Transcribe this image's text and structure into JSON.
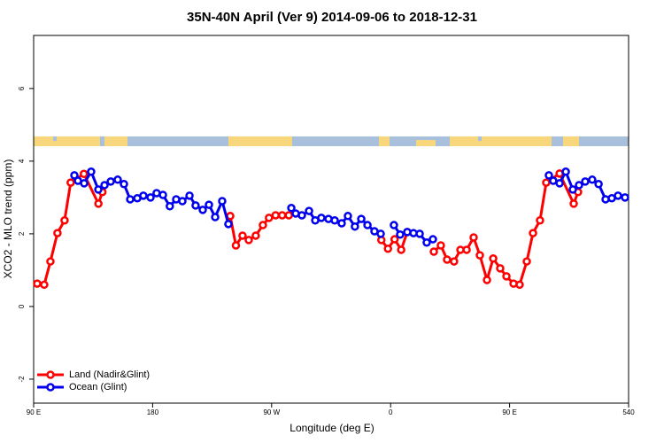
{
  "chart_data": {
    "type": "line",
    "title": "35N-40N April (Ver 9)   2014-09-06 to 2018-12-31",
    "xlabel": "Longitude (deg E)",
    "ylabel": "XCO2 - MLO trend (ppm)",
    "xlim": [
      90,
      540
    ],
    "ylim": [
      -2.66,
      7.46
    ],
    "xticks": [
      {
        "value": 90,
        "label": "90 E"
      },
      180,
      {
        "value": 270,
        "label": "90 W"
      },
      {
        "value": 360,
        "label": "0"
      },
      {
        "value": 450,
        "label": "90 E"
      },
      540
    ],
    "yticks": [
      -2,
      0,
      2,
      4,
      6
    ],
    "legend": "bottom-left",
    "series": [
      {
        "name": "Land (Nadir&Glint)",
        "color": "#ff0000",
        "x": [
          92.7,
          98,
          102.7,
          108,
          113.4,
          118,
          128,
          139,
          142,
          null,
          238.7,
          243,
          248,
          252.7,
          258,
          263.4,
          268,
          273,
          278,
          283,
          null,
          353,
          358,
          363,
          368,
          372.6,
          null,
          392.7,
          398,
          402.7,
          408,
          412.8,
          417.5,
          422.8,
          427.5,
          432.9,
          437.6,
          442.9,
          447.6,
          453,
          457.6,
          463,
          467.7,
          473,
          477.7,
          487.8,
          498.5,
          501.8
        ],
        "values": [
          0.63,
          0.6,
          1.24,
          2.02,
          2.37,
          3.41,
          3.65,
          2.83,
          3.15,
          null,
          2.49,
          1.68,
          1.95,
          1.83,
          1.95,
          2.24,
          2.44,
          2.51,
          2.51,
          2.51,
          null,
          1.83,
          1.59,
          1.85,
          1.56,
          2.05,
          null,
          1.51,
          1.68,
          1.29,
          1.24,
          1.56,
          1.56,
          1.9,
          1.41,
          0.73,
          1.32,
          1.05,
          0.83,
          0.63,
          0.6,
          1.24,
          2.02,
          2.37,
          3.41,
          3.66,
          2.83,
          3.15
        ]
      },
      {
        "name": "Ocean (Glint)",
        "color": "#0000ee",
        "x": [
          120.8,
          123.5,
          128.2,
          133.5,
          138.9,
          143.6,
          148.3,
          153.6,
          158.3,
          163,
          168.4,
          173,
          178.4,
          183,
          187.8,
          193,
          197.8,
          202.5,
          207.9,
          212.5,
          217.9,
          222.6,
          227.3,
          232.6,
          237.3,
          null,
          284.9,
          288.2,
          292.9,
          298.3,
          303,
          307.6,
          313,
          317.7,
          323,
          327.7,
          333,
          337.8,
          342.5,
          347.8,
          352.5,
          null,
          362.5,
          367.2,
          372.6,
          377.3,
          382,
          387.3,
          392,
          null,
          479.7,
          483,
          487.8,
          492.5,
          497.8,
          502.5,
          507.2,
          512.5,
          517.3,
          522.6,
          527.3,
          532,
          537.3
        ],
        "values": [
          3.61,
          3.46,
          3.39,
          3.71,
          3.22,
          3.34,
          3.44,
          3.49,
          3.37,
          2.95,
          2.98,
          3.05,
          3.0,
          3.12,
          3.07,
          2.76,
          2.95,
          2.9,
          3.05,
          2.78,
          2.66,
          2.8,
          2.46,
          2.9,
          2.27,
          null,
          2.71,
          2.56,
          2.51,
          2.63,
          2.37,
          2.44,
          2.41,
          2.37,
          2.29,
          2.49,
          2.2,
          2.41,
          2.24,
          2.07,
          2.0,
          null,
          2.24,
          1.98,
          2.05,
          2.02,
          2.0,
          1.76,
          1.85,
          null,
          3.61,
          3.46,
          3.39,
          3.71,
          3.22,
          3.34,
          3.44,
          3.49,
          3.37,
          2.95,
          2.98,
          3.05,
          3.0
        ]
      }
    ]
  }
}
